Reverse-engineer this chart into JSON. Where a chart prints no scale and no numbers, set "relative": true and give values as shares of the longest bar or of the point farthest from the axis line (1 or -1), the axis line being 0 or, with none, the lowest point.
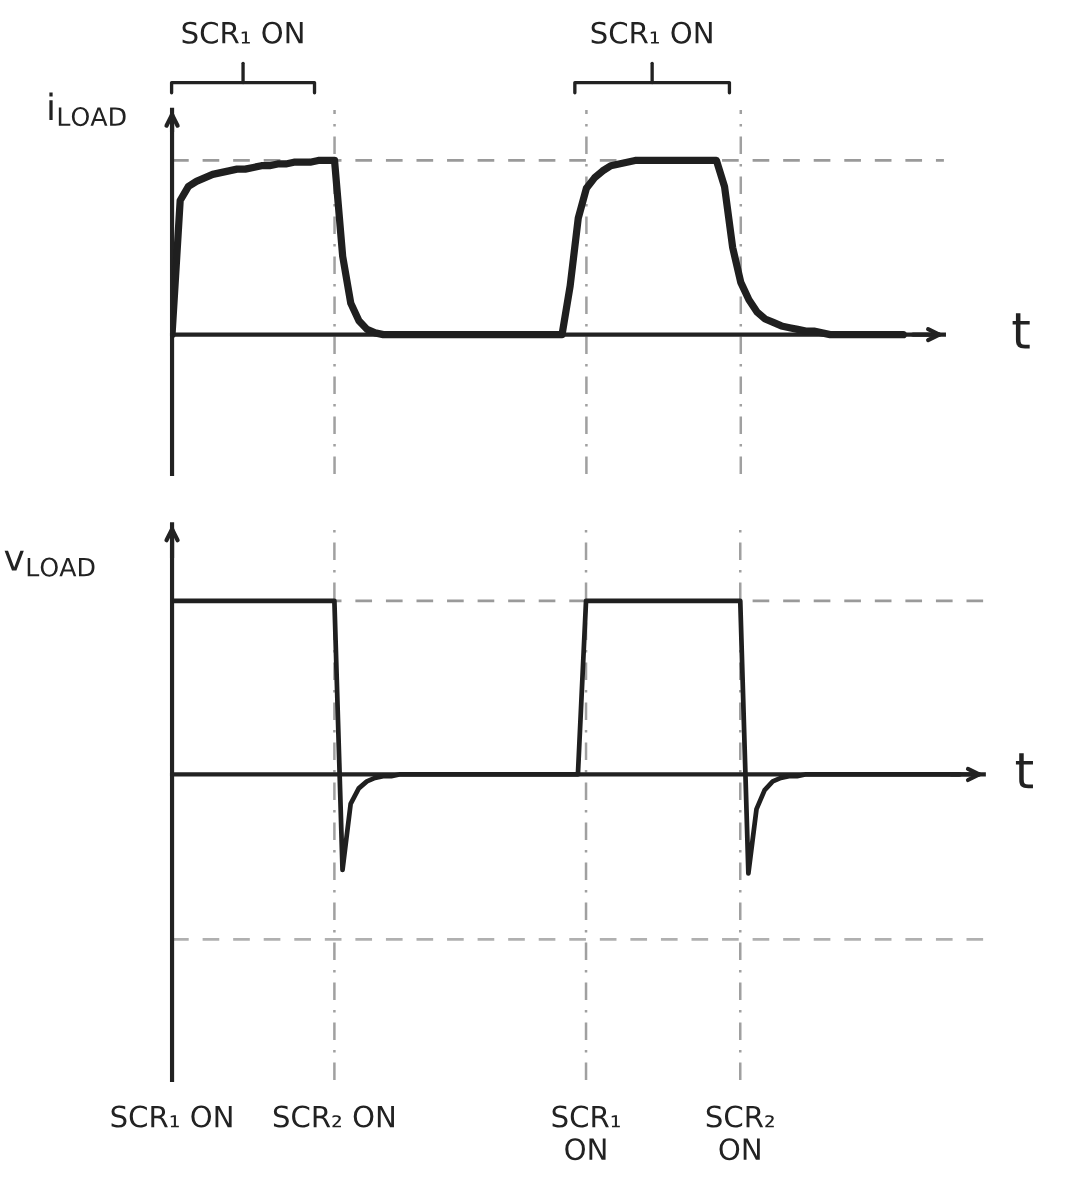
{
  "chart_data": [
    {
      "type": "line",
      "relative": true,
      "ylabel": "i$_{LOAD}$",
      "xlabel": "t",
      "categories": [
        null,
        null,
        null,
        null,
        null,
        null,
        null,
        null,
        null,
        null,
        null,
        null,
        null,
        null,
        null,
        null,
        null,
        null,
        null,
        null,
        null,
        null,
        null,
        null,
        null,
        null,
        null,
        null,
        null,
        null,
        null,
        null,
        null,
        null,
        null,
        null,
        null,
        null,
        null,
        null,
        null,
        null,
        null,
        null,
        null,
        null,
        null,
        null,
        null,
        null,
        null,
        null,
        null,
        null,
        null,
        null,
        null,
        null,
        null,
        null,
        null,
        null,
        null,
        null,
        null,
        null,
        null,
        null,
        null,
        null,
        null,
        null,
        null,
        null,
        null,
        null,
        null,
        null,
        null,
        null,
        null,
        null,
        null,
        null,
        null,
        null,
        null,
        null,
        null,
        null,
        null,
        null,
        null,
        null,
        null
      ],
      "values": [
        0,
        0.77,
        0.85,
        0.88,
        0.9,
        0.92,
        0.93,
        0.94,
        0.95,
        0.95,
        0.96,
        0.97,
        0.97,
        0.98,
        0.98,
        0.99,
        0.99,
        0.99,
        1,
        1,
        1,
        0.45,
        0.18,
        0.08,
        0.03,
        0.01,
        0,
        0,
        0,
        0,
        0,
        0,
        0,
        0,
        0,
        0,
        0,
        0,
        0,
        0,
        0,
        0,
        0,
        0,
        0,
        0,
        0,
        0,
        0,
        0.28,
        0.67,
        0.84,
        0.9,
        0.94,
        0.97,
        0.98,
        0.99,
        1,
        1,
        1,
        1,
        1,
        1,
        1,
        1,
        1,
        1,
        1,
        0.85,
        0.5,
        0.3,
        0.2,
        0.13,
        0.09,
        0.07,
        0.05,
        0.04,
        0.03,
        0.02,
        0.02,
        0.01,
        0,
        0,
        0,
        0,
        0,
        0,
        0,
        0,
        0,
        0,
        null,
        null,
        null,
        null
      ],
      "color": "#1f1f1f",
      "grid": "x",
      "ref_lines": [
        {
          "axis": "y",
          "value": 1,
          "line_style": "dashed",
          "color": "#9a9a9a"
        }
      ],
      "annotations": [
        "SCR₁ ON",
        "SCR₁ ON"
      ]
    },
    {
      "type": "line",
      "relative": true,
      "ylabel": "v$_{LOAD}$",
      "xlabel": "t",
      "categories": [
        "SCR₁ ON",
        null,
        null,
        null,
        null,
        null,
        null,
        null,
        null,
        null,
        null,
        null,
        null,
        null,
        null,
        null,
        null,
        null,
        null,
        null,
        "SCR₂ ON",
        null,
        null,
        null,
        null,
        null,
        null,
        null,
        null,
        null,
        null,
        null,
        null,
        null,
        null,
        null,
        null,
        null,
        null,
        null,
        null,
        null,
        null,
        null,
        null,
        null,
        null,
        null,
        null,
        null,
        null,
        "SCR₁\nON",
        null,
        null,
        null,
        null,
        null,
        null,
        null,
        null,
        null,
        null,
        null,
        null,
        null,
        null,
        null,
        null,
        null,
        null,
        "SCR₂\nON",
        null,
        null,
        null,
        null,
        null,
        null,
        null,
        null,
        null,
        null,
        null,
        null,
        null,
        null,
        null,
        null,
        null,
        null,
        null,
        null,
        null,
        null,
        null,
        null,
        null,
        null,
        null,
        null,
        null
      ],
      "values": [
        1,
        1,
        1,
        1,
        1,
        1,
        1,
        1,
        1,
        1,
        1,
        1,
        1,
        1,
        1,
        1,
        1,
        1,
        1,
        1,
        1,
        -0.55,
        -0.17,
        -0.08,
        -0.04,
        -0.02,
        -0.01,
        -0.01,
        0,
        0,
        0,
        0,
        0,
        0,
        0,
        0,
        0,
        0,
        0,
        0,
        0,
        0,
        0,
        0,
        0,
        0,
        0,
        0,
        0,
        0,
        0,
        1,
        1,
        1,
        1,
        1,
        1,
        1,
        1,
        1,
        1,
        1,
        1,
        1,
        1,
        1,
        1,
        1,
        1,
        1,
        1,
        -0.57,
        -0.2,
        -0.09,
        -0.04,
        -0.02,
        -0.01,
        -0.01,
        0,
        0,
        0,
        0,
        0,
        0,
        0,
        0,
        0,
        0,
        0,
        0,
        0,
        0,
        0,
        0,
        0,
        0,
        0,
        0,
        null,
        null
      ],
      "color": "#1f1f1f",
      "tick_labels": "x",
      "grid": "x",
      "ref_lines": [
        {
          "axis": "y",
          "value": 1,
          "line_style": "dashed",
          "color": "#9a9a9a"
        },
        {
          "axis": "y",
          "value": -0.95,
          "line_style": "dashed",
          "color": "#b0b0b0"
        }
      ]
    }
  ]
}
